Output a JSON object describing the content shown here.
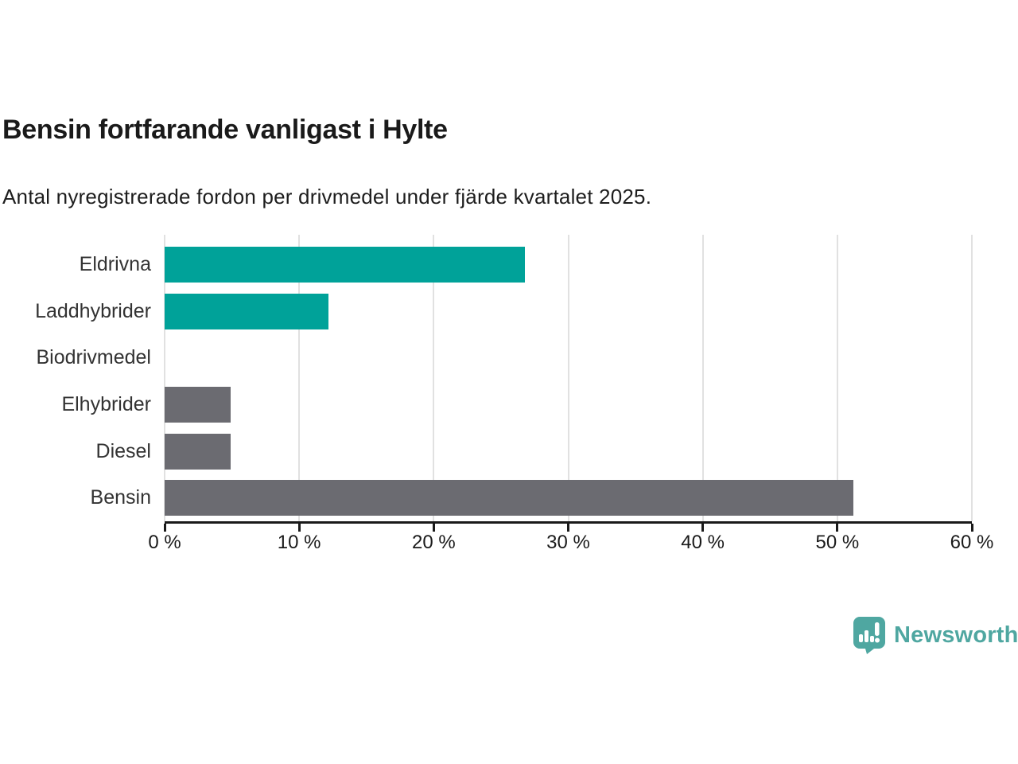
{
  "chart_data": {
    "type": "bar",
    "orientation": "horizontal",
    "title": "Bensin fortfarande vanligast i Hylte",
    "subtitle": "Antal nyregistrerade fordon per drivmedel under fjärde kvartalet 2025.",
    "categories": [
      "Eldrivna",
      "Laddhybrider",
      "Biodrivmedel",
      "Elhybrider",
      "Diesel",
      "Bensin"
    ],
    "values": [
      26.8,
      12.2,
      0,
      4.9,
      4.9,
      51.2
    ],
    "unit": "%",
    "bar_colors": [
      "#00a299",
      "#00a299",
      "#00a299",
      "#6b6b71",
      "#6b6b71",
      "#6b6b71"
    ],
    "xlim": [
      0,
      60
    ],
    "x_tick_values": [
      0,
      10,
      20,
      30,
      40,
      50,
      60
    ],
    "x_tick_labels": [
      "0 %",
      "10 %",
      "20 %",
      "30 %",
      "40 %",
      "50 %",
      "60 %"
    ],
    "grid": true,
    "legend": "none"
  },
  "colors": {
    "teal": "#00a299",
    "gray": "#6b6b71",
    "axis": "#1a1a1a",
    "gridline": "#e1e1e1",
    "title_text": "#1a1a1a",
    "subtitle_text": "#1d1d1d",
    "label_text": "#333333",
    "logo_teal": "#4fa7a1"
  },
  "branding": {
    "logo_text": "Newsworthy"
  }
}
